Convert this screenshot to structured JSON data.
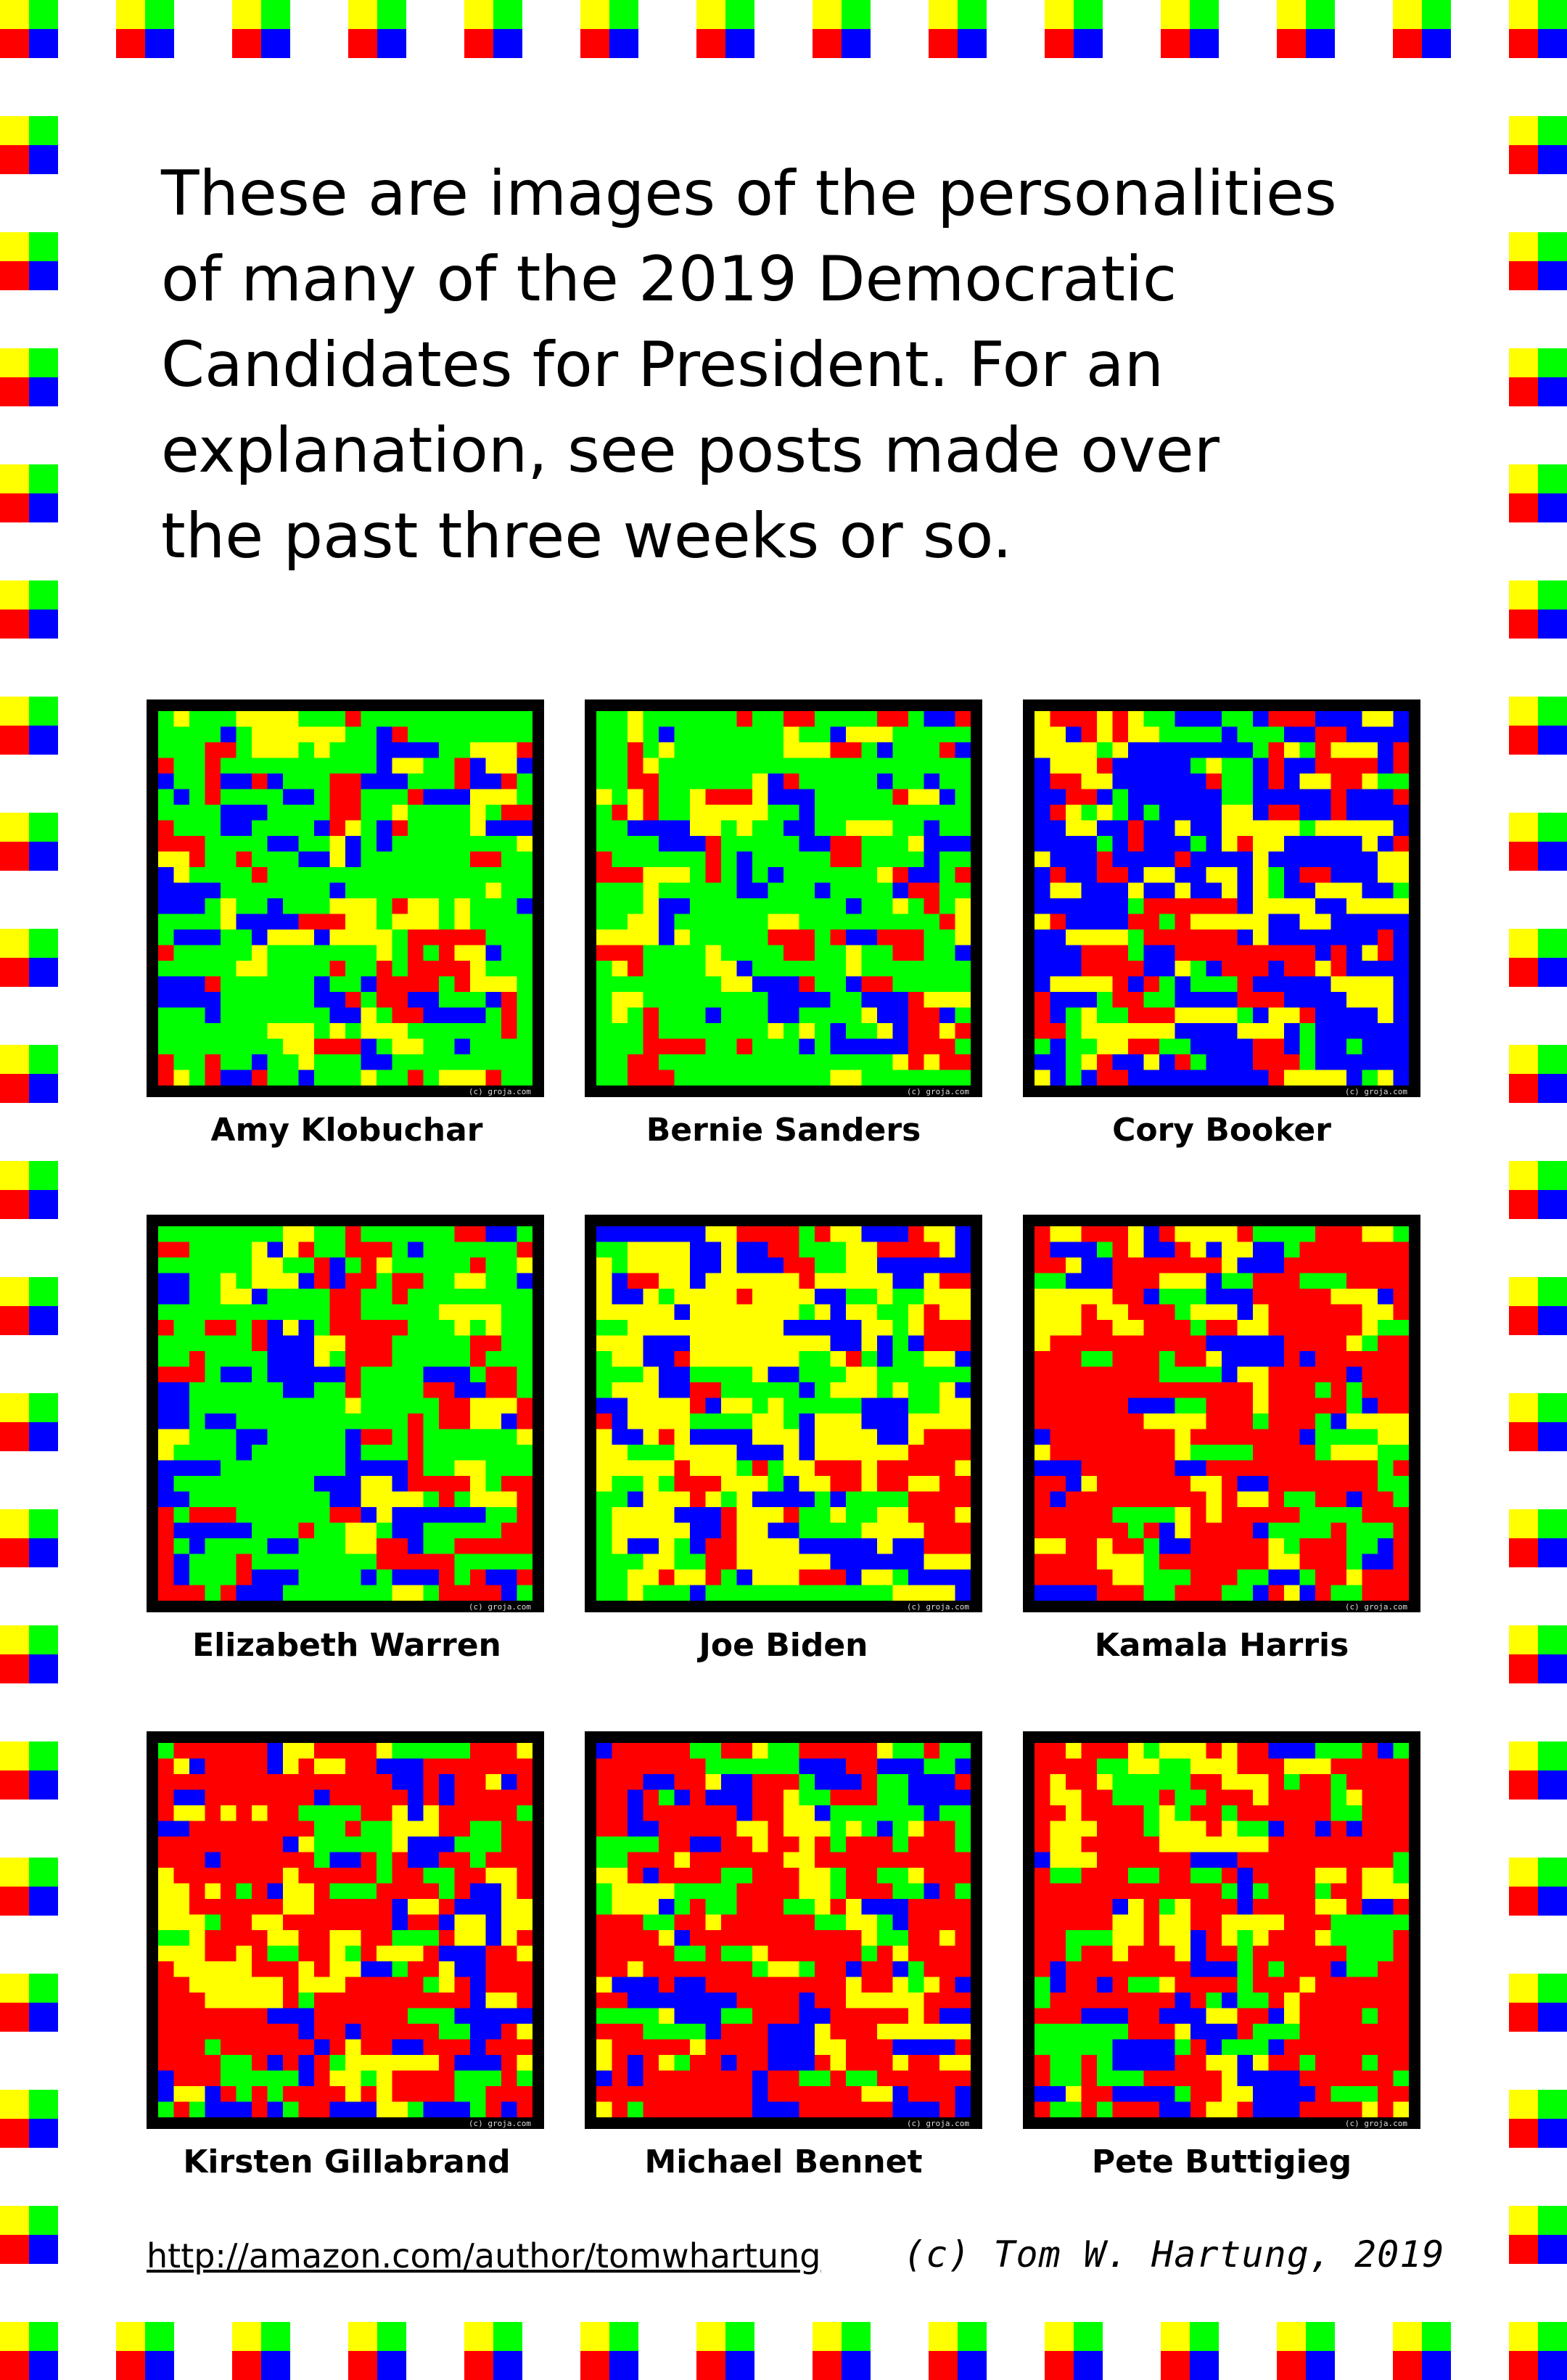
{
  "intro_text": "These are images of the personalities\nof many of the 2019 Democratic\nCandidates for President.  For an\nexplanation, see posts made over\nthe past three weeks or so.",
  "colors": {
    "red": "#ff0000",
    "yellow": "#ffff00",
    "green": "#00ff00",
    "blue": "#0000ff",
    "frame": "#000000"
  },
  "border_icon": "four-color-square-icon",
  "watermark": "(c) groja.com",
  "candidates": [
    {
      "name": "Amy Klobuchar",
      "tone": "green"
    },
    {
      "name": "Bernie Sanders",
      "tone": "green"
    },
    {
      "name": "Cory Booker",
      "tone": "blue"
    },
    {
      "name": "Elizabeth Warren",
      "tone": "green"
    },
    {
      "name": "Joe Biden",
      "tone": "yellow"
    },
    {
      "name": "Kamala Harris",
      "tone": "red"
    },
    {
      "name": "Kirsten Gillabrand",
      "tone": "red"
    },
    {
      "name": "Michael Bennet",
      "tone": "red"
    },
    {
      "name": "Pete Buttigieg",
      "tone": "red"
    }
  ],
  "footer": {
    "link": "http://amazon.com/author/tomwhartung",
    "copyright": "(c) Tom W. Hartung, 2019"
  }
}
